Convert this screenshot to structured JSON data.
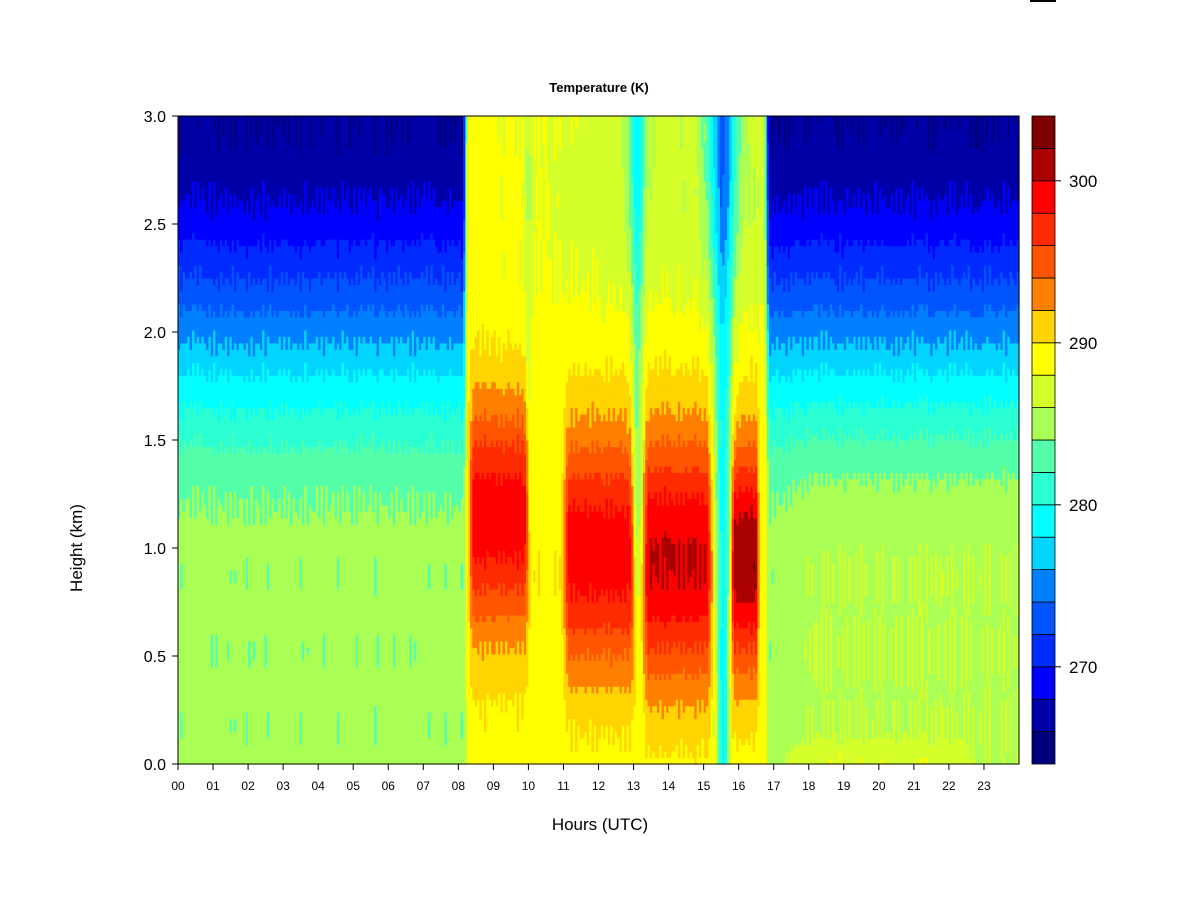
{
  "chart_data": {
    "type": "heatmap",
    "title": "Temperature (K)",
    "xlabel": "Hours (UTC)",
    "ylabel": "Height (km)",
    "xlim": [
      0,
      24
    ],
    "ylim": [
      0,
      3
    ],
    "x_tick_values": [
      0,
      1,
      2,
      3,
      4,
      5,
      6,
      7,
      8,
      9,
      10,
      11,
      12,
      13,
      14,
      15,
      16,
      17,
      18,
      19,
      20,
      21,
      22,
      23
    ],
    "x_tick_labels": [
      "00",
      "01",
      "02",
      "03",
      "04",
      "05",
      "06",
      "07",
      "08",
      "09",
      "10",
      "11",
      "12",
      "13",
      "14",
      "15",
      "16",
      "17",
      "18",
      "19",
      "20",
      "21",
      "22",
      "23"
    ],
    "y_tick_values": [
      0,
      0.5,
      1,
      1.5,
      2,
      2.5,
      3
    ],
    "y_tick_labels": [
      "0.0",
      "0.5",
      "1.0",
      "1.5",
      "2.0",
      "2.5",
      "3.0"
    ],
    "colorbar": {
      "range": [
        264,
        304
      ],
      "levels": [
        264,
        266,
        268,
        270,
        272,
        274,
        276,
        278,
        280,
        282,
        284,
        286,
        288,
        290,
        292,
        294,
        296,
        298,
        300,
        302,
        304
      ],
      "tick_values": [
        270,
        280,
        290,
        300
      ],
      "tick_labels": [
        "270",
        "280",
        "290",
        "300"
      ],
      "colors": [
        "#00007f",
        "#0000a9",
        "#0000d4",
        "#0000ff",
        "#002bff",
        "#0055ff",
        "#0080ff",
        "#00aaff",
        "#00d4ff",
        "#00ffff",
        "#2bffd4",
        "#55ffaa",
        "#80ff80",
        "#aaff55",
        "#d4ff2b",
        "#ffff00",
        "#ffd400",
        "#ffaa00",
        "#ff8000",
        "#ff5500",
        "#ff2b00",
        "#ff0000",
        "#d40000",
        "#a90000",
        "#7f0000"
      ]
    },
    "features": [
      {
        "x": [
          8.2,
          10.0
        ],
        "z_km": 1.15,
        "peak_K": 298
      },
      {
        "x": [
          11.0,
          13.0
        ],
        "z_km": 0.95,
        "peak_K": 299
      },
      {
        "x": [
          13.2,
          15.3
        ],
        "z_km": 0.95,
        "peak_K": 300
      },
      {
        "x": [
          15.8,
          16.6
        ],
        "z_km": 0.95,
        "peak_K": 301
      }
    ]
  }
}
